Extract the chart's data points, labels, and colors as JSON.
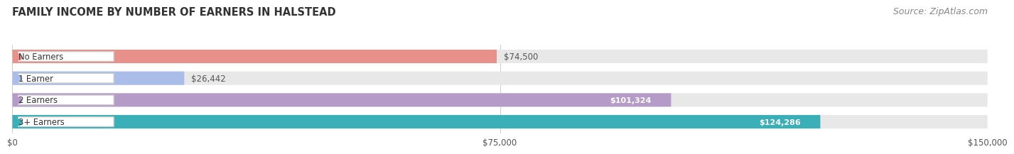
{
  "title": "FAMILY INCOME BY NUMBER OF EARNERS IN HALSTEAD",
  "source": "Source: ZipAtlas.com",
  "categories": [
    "No Earners",
    "1 Earner",
    "2 Earners",
    "3+ Earners"
  ],
  "values": [
    74500,
    26442,
    101324,
    124286
  ],
  "labels": [
    "$74,500",
    "$26,442",
    "$101,324",
    "$124,286"
  ],
  "bar_colors": [
    "#E8908A",
    "#AABDE8",
    "#B59CC8",
    "#3AAFB8"
  ],
  "track_color": "#E8E8E8",
  "xlim": [
    0,
    150000
  ],
  "xticks": [
    0,
    75000,
    150000
  ],
  "xtick_labels": [
    "$0",
    "$75,000",
    "$150,000"
  ],
  "background_color": "#FFFFFF",
  "title_fontsize": 10.5,
  "source_fontsize": 9,
  "bar_height": 0.62,
  "label_inside": [
    false,
    false,
    true,
    true
  ]
}
